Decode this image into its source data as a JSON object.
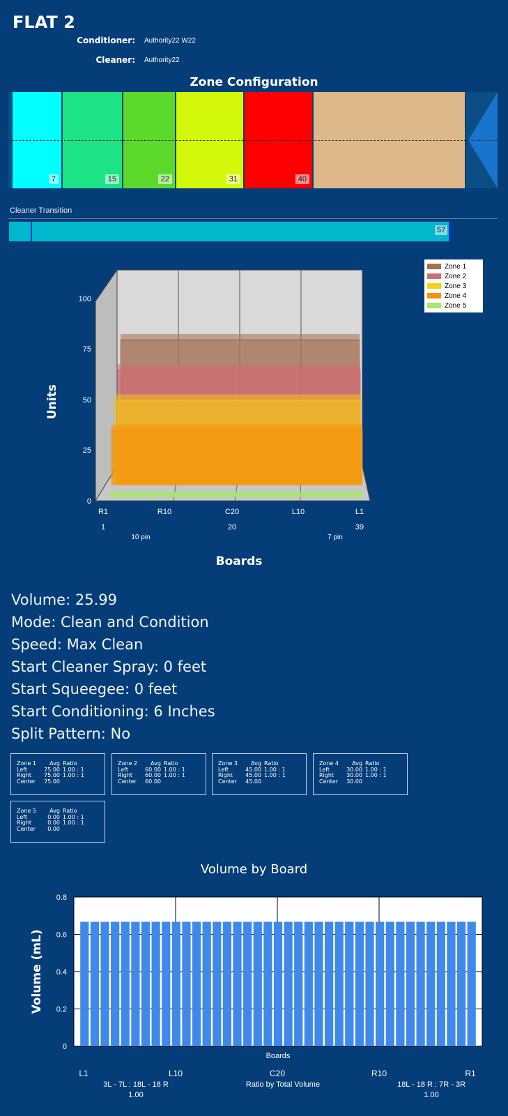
{
  "header": {
    "title": "FLAT 2",
    "conditioner_label": "Conditioner:",
    "conditioner_value": "Authority22 W22",
    "cleaner_label": "Cleaner:",
    "cleaner_value": "Authority22"
  },
  "zone_config": {
    "title": "Zone Configuration",
    "zones": [
      {
        "value": "7",
        "color": "#00ffff"
      },
      {
        "value": "15",
        "color": "#1de387"
      },
      {
        "value": "22",
        "color": "#5dd92b"
      },
      {
        "value": "31",
        "color": "#d4f80a"
      },
      {
        "value": "40",
        "color": "#ff0000"
      }
    ],
    "rest_color": "#deb88a",
    "arrow_color": "#1874cd"
  },
  "cleaner_transition": {
    "label": "Cleaner Transition",
    "value": "57"
  },
  "stats": {
    "volume": "Volume: 25.99",
    "mode": "Mode: Clean and Condition",
    "speed": "Speed: Max Clean",
    "cleaner_spray": "Start Cleaner Spray: 0 feet",
    "squeegee": "Start Squeegee: 0 feet",
    "conditioning": "Start Conditioning: 6 Inches",
    "split": "Split Pattern: No"
  },
  "zone_tables": [
    {
      "name": "Zone 1",
      "avg_h": "Avg",
      "ratio_h": "Ratio",
      "left": "75.00",
      "left_ratio": "1.00 : 1",
      "right": "75.00",
      "right_ratio": "1.00 : 1",
      "center": "75.00"
    },
    {
      "name": "Zone 2",
      "avg_h": "Avg",
      "ratio_h": "Ratio",
      "left": "60.00",
      "left_ratio": "1.00 : 1",
      "right": "60.00",
      "right_ratio": "1.00 : 1",
      "center": "60.00"
    },
    {
      "name": "Zone 3",
      "avg_h": "Avg",
      "ratio_h": "Ratio",
      "left": "45.00",
      "left_ratio": "1.00 : 1",
      "right": "45.00",
      "right_ratio": "1.00 : 1",
      "center": "45.00"
    },
    {
      "name": "Zone 4",
      "avg_h": "Avg",
      "ratio_h": "Ratio",
      "left": "30.00",
      "left_ratio": "1.00 : 1",
      "right": "30.00",
      "right_ratio": "1.00 : 1",
      "center": "30.00"
    },
    {
      "name": "Zone 5",
      "avg_h": "Avg",
      "ratio_h": "Ratio",
      "left": "0.00",
      "left_ratio": "1.00 : 1",
      "right": "0.00",
      "right_ratio": "1.00 : 1",
      "center": "0.00"
    }
  ],
  "row_labels": {
    "left": "Left",
    "right": "Right",
    "center": "Center"
  },
  "chart_data": [
    {
      "type": "area",
      "ylabel": "Units",
      "xlabel": "Boards",
      "ylim": [
        0,
        100
      ],
      "y_ticks": [
        "0",
        "25",
        "50",
        "75",
        "100"
      ],
      "x_ticks": [
        "R1",
        "R10",
        "C20",
        "L10",
        "L1"
      ],
      "x_sub_ticks": [
        "1",
        "20",
        "39"
      ],
      "pin_labels": [
        "10 pin",
        "7 pin"
      ],
      "legend": [
        "Zone 1",
        "Zone 2",
        "Zone 3",
        "Zone 4",
        "Zone 5"
      ],
      "legend_position": "top-right",
      "series": [
        {
          "name": "Zone 1",
          "value": 75,
          "color": "#a56f52"
        },
        {
          "name": "Zone 2",
          "value": 60,
          "color": "#cf6e72"
        },
        {
          "name": "Zone 3",
          "value": 45,
          "color": "#f4c21c"
        },
        {
          "name": "Zone 4",
          "value": 30,
          "color": "#f6950b"
        },
        {
          "name": "Zone 5",
          "value": 0,
          "color": "#8fd34a"
        }
      ]
    },
    {
      "type": "bar",
      "title": "Volume by Board",
      "ylabel": "Volume (mL)",
      "xlabel": "Boards",
      "ylim": [
        0,
        0.8
      ],
      "y_ticks": [
        "0",
        "0.2",
        "0.4",
        "0.6",
        "0.8"
      ],
      "x_ticks": [
        "L1",
        "L10",
        "C20",
        "R10",
        "R1"
      ],
      "values": [
        0.667,
        0.667,
        0.667,
        0.667,
        0.667,
        0.667,
        0.667,
        0.667,
        0.667,
        0.667,
        0.667,
        0.667,
        0.667,
        0.667,
        0.667,
        0.667,
        0.667,
        0.667,
        0.667,
        0.667,
        0.667,
        0.667,
        0.667,
        0.667,
        0.667,
        0.667,
        0.667,
        0.667,
        0.667,
        0.667,
        0.667,
        0.667,
        0.667,
        0.667,
        0.667,
        0.667,
        0.667,
        0.667,
        0.667
      ],
      "bar_color": "#4189e8",
      "ratio_left": "3L - 7L : 18L - 18 R",
      "ratio_left_value": "1.00",
      "ratio_center": "Ratio by Total Volume",
      "ratio_right": "18L - 18 R : 7R - 3R",
      "ratio_right_value": "1.00"
    }
  ]
}
